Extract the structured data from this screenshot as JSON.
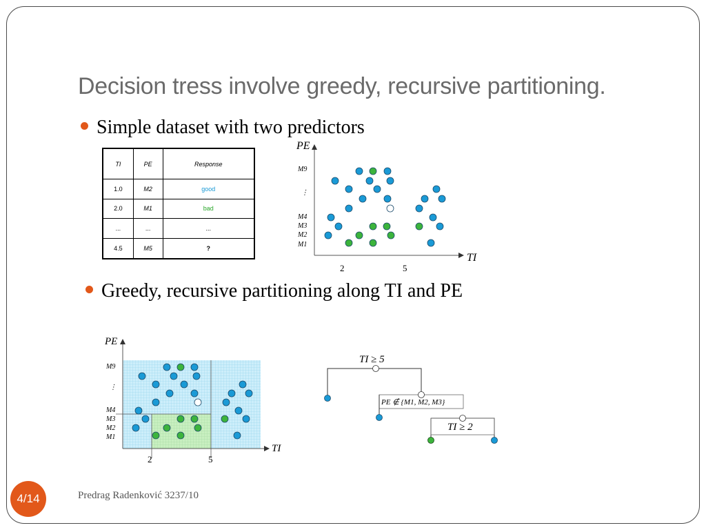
{
  "slide": {
    "title": "Decision tress involve greedy, recursive partitioning.",
    "bullet1": "Simple dataset with two predictors",
    "bullet2": "Greedy, recursive partitioning along TI and PE",
    "page_number": "4/14",
    "footer": "Predrag Radenković 3237/10"
  },
  "table": {
    "headers": [
      "TI",
      "PE",
      "Response"
    ],
    "rows": [
      [
        "1.0",
        "M2",
        "good"
      ],
      [
        "2.0",
        "M1",
        "bad"
      ],
      [
        "...",
        "...",
        "..."
      ],
      [
        "4.5",
        "M5",
        "?"
      ]
    ]
  },
  "scatter": {
    "x_axis_label": "TI",
    "y_axis_label": "PE",
    "x_ticks": [
      "2",
      "5"
    ],
    "y_ticks": [
      "M9",
      "⋮",
      "M4",
      "M3",
      "M2",
      "M1"
    ]
  },
  "tree": {
    "root": "TI ≥ 5",
    "node2": "PE ∉ {M1, M2, M3}",
    "node3": "TI ≥ 2"
  },
  "colors": {
    "blue_point": "#1a9ad6",
    "green_point": "#3cb43c",
    "accent": "#e2581a"
  }
}
